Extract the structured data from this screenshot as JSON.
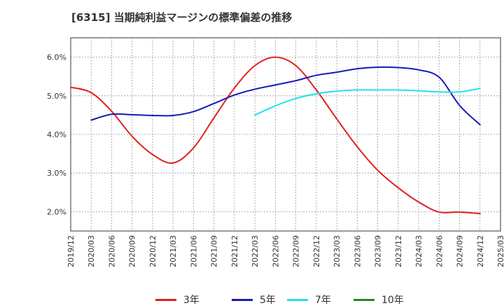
{
  "header": {
    "title": "[6315]  当期純利益マージンの標準偏差の推移"
  },
  "chart_data": {
    "type": "line",
    "title": "[6315]  当期純利益マージンの標準偏差の推移",
    "xlabel": "",
    "ylabel": "",
    "x_ticks": [
      "2019/12",
      "2020/03",
      "2020/06",
      "2020/09",
      "2020/12",
      "2021/03",
      "2021/06",
      "2021/09",
      "2021/12",
      "2022/03",
      "2022/06",
      "2022/09",
      "2022/12",
      "2023/03",
      "2023/06",
      "2023/09",
      "2023/12",
      "2024/03",
      "2024/06",
      "2024/09",
      "2024/12",
      "2025/03"
    ],
    "y_ticks": [
      2.0,
      3.0,
      4.0,
      5.0,
      6.0
    ],
    "y_tick_labels": [
      "2.0%",
      "3.0%",
      "4.0%",
      "5.0%",
      "6.0%"
    ],
    "ylim": [
      1.5,
      6.5
    ],
    "grid": true,
    "legend": "bottom",
    "series": [
      {
        "name": "3年",
        "color": "#dd2222",
        "x": [
          "2019/12",
          "2020/03",
          "2020/06",
          "2020/09",
          "2020/12",
          "2021/03",
          "2021/06",
          "2021/09",
          "2021/12",
          "2022/03",
          "2022/06",
          "2022/09",
          "2022/12",
          "2023/03",
          "2023/06",
          "2023/09",
          "2023/12",
          "2024/03",
          "2024/06",
          "2024/09",
          "2024/12"
        ],
        "values": [
          5.22,
          5.08,
          4.6,
          3.95,
          3.48,
          3.26,
          3.65,
          4.43,
          5.2,
          5.78,
          6.0,
          5.78,
          5.15,
          4.4,
          3.68,
          3.07,
          2.62,
          2.25,
          1.99,
          1.99,
          1.95
        ]
      },
      {
        "name": "5年",
        "color": "#1a1ab8",
        "x": [
          "2020/03",
          "2020/06",
          "2020/09",
          "2020/12",
          "2021/03",
          "2021/06",
          "2021/09",
          "2021/12",
          "2022/03",
          "2022/06",
          "2022/09",
          "2022/12",
          "2023/03",
          "2023/06",
          "2023/09",
          "2023/12",
          "2024/03",
          "2024/06",
          "2024/09",
          "2024/12"
        ],
        "values": [
          4.37,
          4.52,
          4.51,
          4.49,
          4.49,
          4.59,
          4.8,
          5.02,
          5.17,
          5.28,
          5.39,
          5.53,
          5.61,
          5.7,
          5.74,
          5.73,
          5.67,
          5.48,
          4.75,
          4.25
        ]
      },
      {
        "name": "7年",
        "color": "#22e0f0",
        "x": [
          "2022/03",
          "2022/06",
          "2022/09",
          "2022/12",
          "2023/03",
          "2023/06",
          "2023/09",
          "2023/12",
          "2024/03",
          "2024/06",
          "2024/09",
          "2024/12"
        ],
        "values": [
          4.5,
          4.74,
          4.93,
          5.05,
          5.12,
          5.15,
          5.15,
          5.15,
          5.13,
          5.1,
          5.1,
          5.19
        ]
      },
      {
        "name": "10年",
        "color": "#228b22",
        "x": [],
        "values": []
      }
    ]
  }
}
